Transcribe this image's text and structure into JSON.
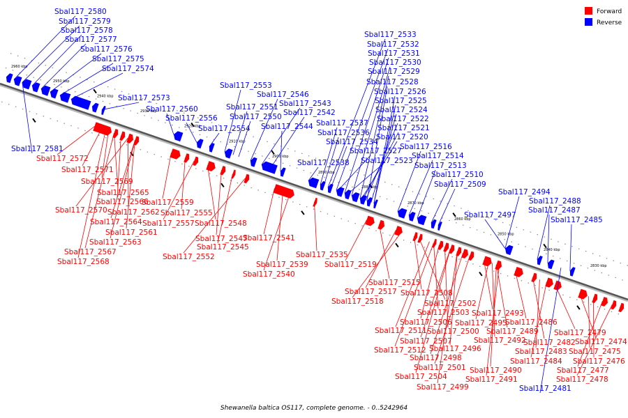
{
  "legend": {
    "forward_label": "Forward",
    "reverse_label": "Reverse",
    "forward_color": "#ff0000",
    "reverse_color": "#0000ff"
  },
  "caption": "Shewanella baltica OS117, complete genome. - 0..5242964",
  "scale_labels": [
    "2960 kbp",
    "2950 kbp",
    "2940 kbp",
    "2930 kbp",
    "2920 kbp",
    "2910 kbp",
    "2900 kbp",
    "2890 kbp",
    "2880 kbp",
    "2870 kbp",
    "2860 kbp",
    "2850 kbp",
    "2840 kbp",
    "2830 kbp"
  ],
  "reverse_labels": [
    "Sbal117_2580",
    "Sbal117_2579",
    "Sbal117_2578",
    "Sbal117_2577",
    "Sbal117_2576",
    "Sbal117_2575",
    "Sbal117_2574",
    "Sbal117_2573",
    "Sbal117_2581",
    "Sbal117_2560",
    "Sbal117_2556",
    "Sbal117_2554",
    "Sbal117_2553",
    "Sbal117_2551",
    "Sbal117_2550",
    "Sbal117_2546",
    "Sbal117_2543",
    "Sbal117_2542",
    "Sbal117_2544",
    "Sbal117_2533",
    "Sbal117_2532",
    "Sbal117_2531",
    "Sbal117_2530",
    "Sbal117_2529",
    "Sbal117_2528",
    "Sbal117_2526",
    "Sbal117_2525",
    "Sbal117_2524",
    "Sbal117_2522",
    "Sbal117_2521",
    "Sbal117_2520",
    "Sbal117_2537",
    "Sbal117_2536",
    "Sbal117_2534",
    "Sbal117_2527",
    "Sbal117_2523",
    "Sbal117_2538",
    "Sbal117_2516",
    "Sbal117_2514",
    "Sbal117_2513",
    "Sbal117_2510",
    "Sbal117_2509",
    "Sbal117_2494",
    "Sbal117_2488",
    "Sbal117_2487",
    "Sbal117_2485",
    "Sbal117_2497",
    "Sbal117_2481"
  ],
  "forward_labels": [
    "Sbal117_2572",
    "Sbal117_2571",
    "Sbal117_2569",
    "Sbal117_2565",
    "Sbal117_2566",
    "Sbal117_2570",
    "Sbal117_2562",
    "Sbal117_2564",
    "Sbal117_2561",
    "Sbal117_2563",
    "Sbal117_2567",
    "Sbal117_2568",
    "Sbal117_2559",
    "Sbal117_2555",
    "Sbal117_2557",
    "Sbal117_2548",
    "Sbal117_2547",
    "Sbal117_2545",
    "Sbal117_2552",
    "Sbal117_2541",
    "Sbal117_2539",
    "Sbal117_2540",
    "Sbal117_2535",
    "Sbal117_2519",
    "Sbal117_2515",
    "Sbal117_2517",
    "Sbal117_2518",
    "Sbal117_2508",
    "Sbal117_2502",
    "Sbal117_2503",
    "Sbal117_2506",
    "Sbal117_2500",
    "Sbal117_2511",
    "Sbal117_2507",
    "Sbal117_2512",
    "Sbal117_2496",
    "Sbal117_2498",
    "Sbal117_2501",
    "Sbal117_2504",
    "Sbal117_2499",
    "Sbal117_2493",
    "Sbal117_2495",
    "Sbal117_2489",
    "Sbal117_2492",
    "Sbal117_2490",
    "Sbal117_2491",
    "Sbal117_2486",
    "Sbal117_2482",
    "Sbal117_2483",
    "Sbal117_2484",
    "Sbal117_2479",
    "Sbal117_2474",
    "Sbal117_2475",
    "Sbal117_2476",
    "Sbal117_2477",
    "Sbal117_2478"
  ]
}
